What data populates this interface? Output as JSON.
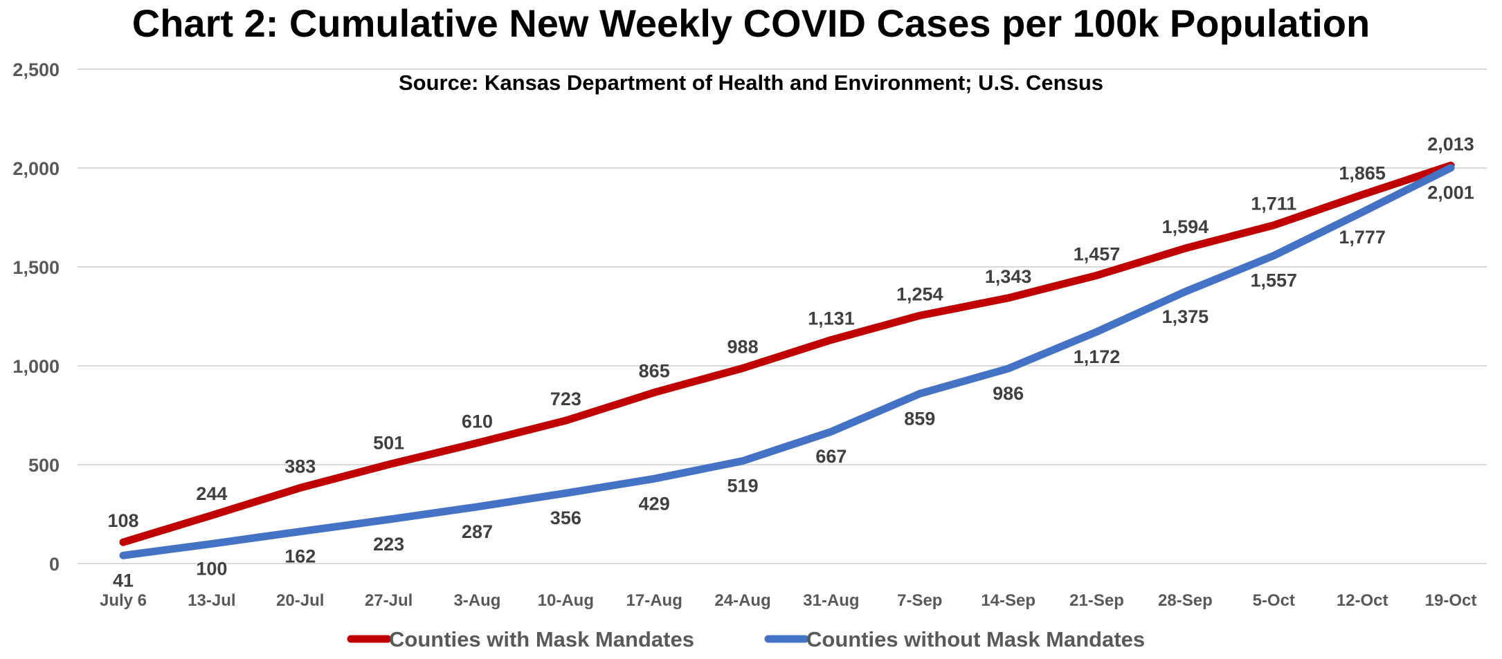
{
  "chart_data": {
    "type": "line",
    "title": "Chart 2: Cumulative New Weekly COVID Cases per 100k Population",
    "subtitle": "Source: Kansas Department of Health and Environment; U.S. Census",
    "categories": [
      "July 6",
      "13-Jul",
      "20-Jul",
      "27-Jul",
      "3-Aug",
      "10-Aug",
      "17-Aug",
      "24-Aug",
      "31-Aug",
      "7-Sep",
      "14-Sep",
      "21-Sep",
      "28-Sep",
      "5-Oct",
      "12-Oct",
      "19-Oct"
    ],
    "ylim": [
      0,
      2500
    ],
    "yticks": [
      0,
      500,
      1000,
      1500,
      2000,
      2500
    ],
    "ytick_labels": [
      "0",
      "500",
      "1,000",
      "1,500",
      "2,000",
      "2,500"
    ],
    "grid": true,
    "legend_position": "bottom",
    "series": [
      {
        "name": "Counties with Mask Mandates",
        "color": "#c00000",
        "values": [
          108,
          244,
          383,
          501,
          610,
          723,
          865,
          988,
          1131,
          1254,
          1343,
          1457,
          1594,
          1711,
          1865,
          2013
        ],
        "labels": [
          "108",
          "244",
          "383",
          "501",
          "610",
          "723",
          "865",
          "988",
          "1,131",
          "1,254",
          "1,343",
          "1,457",
          "1,594",
          "1,711",
          "1,865",
          "2,013"
        ],
        "label_position": "above"
      },
      {
        "name": "Counties without Mask Mandates",
        "color": "#4472c4",
        "values": [
          41,
          100,
          162,
          223,
          287,
          356,
          429,
          519,
          667,
          859,
          986,
          1172,
          1375,
          1557,
          1777,
          2001
        ],
        "labels": [
          "41",
          "100",
          "162",
          "223",
          "287",
          "356",
          "429",
          "519",
          "667",
          "859",
          "986",
          "1,172",
          "1,375",
          "1,557",
          "1,777",
          "2,001"
        ],
        "label_position": "below"
      }
    ]
  }
}
